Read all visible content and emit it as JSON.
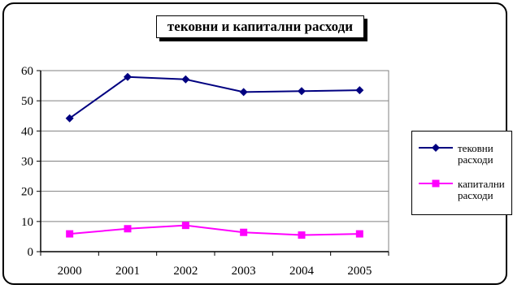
{
  "chart_data": {
    "type": "line",
    "title": "тековни и капитални расходи",
    "categories": [
      "2000",
      "2001",
      "2002",
      "2003",
      "2004",
      "2005"
    ],
    "ylim": [
      0,
      60
    ],
    "yticks": [
      0,
      10,
      20,
      30,
      40,
      50,
      60
    ],
    "grid": true,
    "legend_position": "right",
    "series": [
      {
        "name": "тековни\nрасходи",
        "color": "#000080",
        "marker": "diamond",
        "values": [
          44.2,
          57.9,
          57.1,
          52.9,
          53.2,
          53.5
        ]
      },
      {
        "name": "капитални\nрасходи",
        "color": "#ff00ff",
        "marker": "square",
        "values": [
          5.9,
          7.6,
          8.7,
          6.4,
          5.5,
          5.9
        ]
      }
    ]
  }
}
